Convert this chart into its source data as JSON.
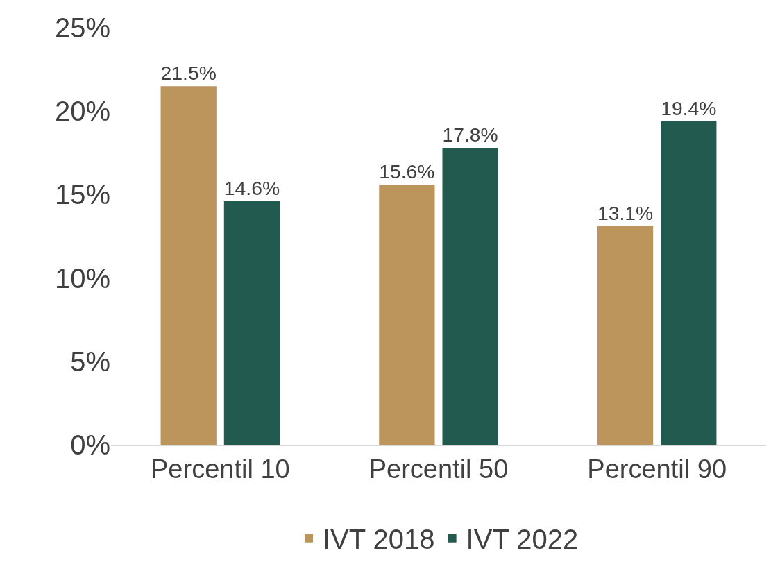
{
  "chart_data": {
    "type": "bar",
    "categories": [
      "Percentil 10",
      "Percentil 50",
      "Percentil 90"
    ],
    "series": [
      {
        "name": "IVT 2018",
        "color": "#bc955c",
        "values": [
          21.5,
          15.6,
          13.1
        ],
        "value_labels": [
          "21.5%",
          "15.6%",
          "13.1%"
        ]
      },
      {
        "name": "IVT 2022",
        "color": "#225a4f",
        "values": [
          14.6,
          17.8,
          19.4
        ],
        "value_labels": [
          "14.6%",
          "17.8%",
          "19.4%"
        ]
      }
    ],
    "ylim": [
      0,
      25
    ],
    "yticks": [
      {
        "value": 0,
        "label": "0%"
      },
      {
        "value": 5,
        "label": "5%"
      },
      {
        "value": 10,
        "label": "10%"
      },
      {
        "value": 15,
        "label": "15%"
      },
      {
        "value": 20,
        "label": "20%"
      },
      {
        "value": 25,
        "label": "25%"
      }
    ],
    "grid": false,
    "legend": "bottom"
  }
}
